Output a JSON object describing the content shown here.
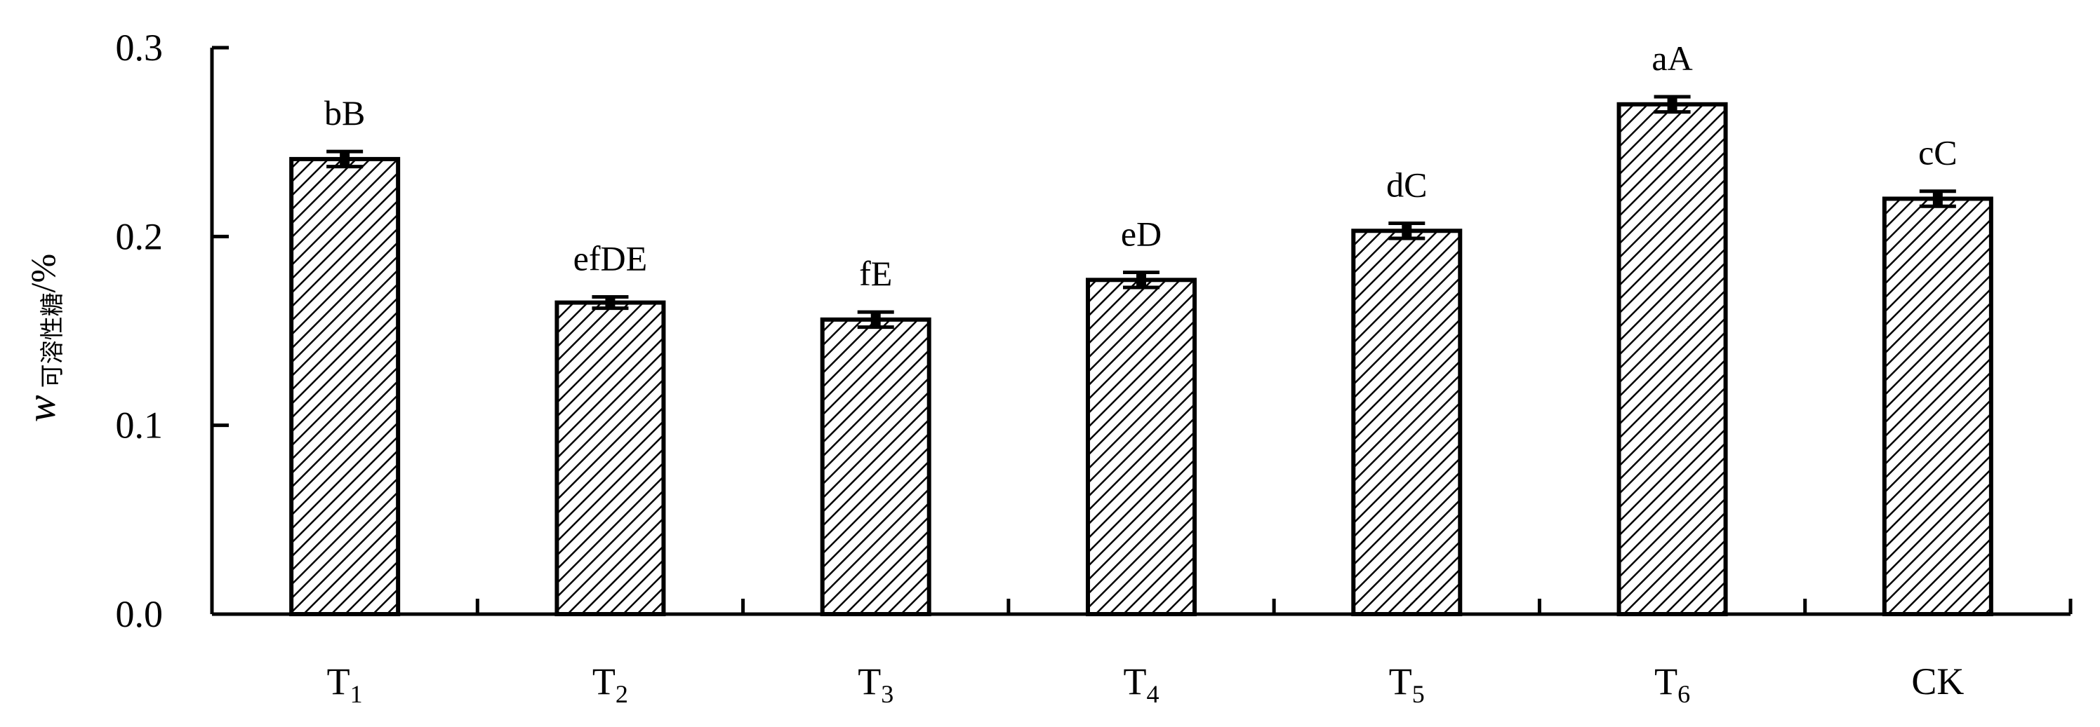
{
  "chart_data": {
    "type": "bar",
    "title": "",
    "xlabel": "",
    "ylabel": {
      "symbol": "w",
      "subscript": "可溶性糖",
      "unit": "/%"
    },
    "ylim": [
      0,
      0.3
    ],
    "yticks": [
      "0.0",
      "0.1",
      "0.2",
      "0.3"
    ],
    "categories": [
      {
        "base": "T",
        "sub": "1"
      },
      {
        "base": "T",
        "sub": "2"
      },
      {
        "base": "T",
        "sub": "3"
      },
      {
        "base": "T",
        "sub": "4"
      },
      {
        "base": "T",
        "sub": "5"
      },
      {
        "base": "T",
        "sub": "6"
      },
      {
        "base": "CK",
        "sub": ""
      }
    ],
    "values": [
      0.241,
      0.165,
      0.156,
      0.177,
      0.203,
      0.27,
      0.22
    ],
    "errors": [
      0.004,
      0.003,
      0.004,
      0.004,
      0.004,
      0.004,
      0.004
    ],
    "labels": [
      "bB",
      "efDE",
      "fE",
      "eD",
      "dC",
      "aA",
      "cC"
    ],
    "grid": false,
    "legend": "none",
    "bar_fill": "diagonal-hatch",
    "colors": {
      "bar_stroke": "#000000",
      "hatch": "#000000",
      "background": "#ffffff"
    }
  }
}
